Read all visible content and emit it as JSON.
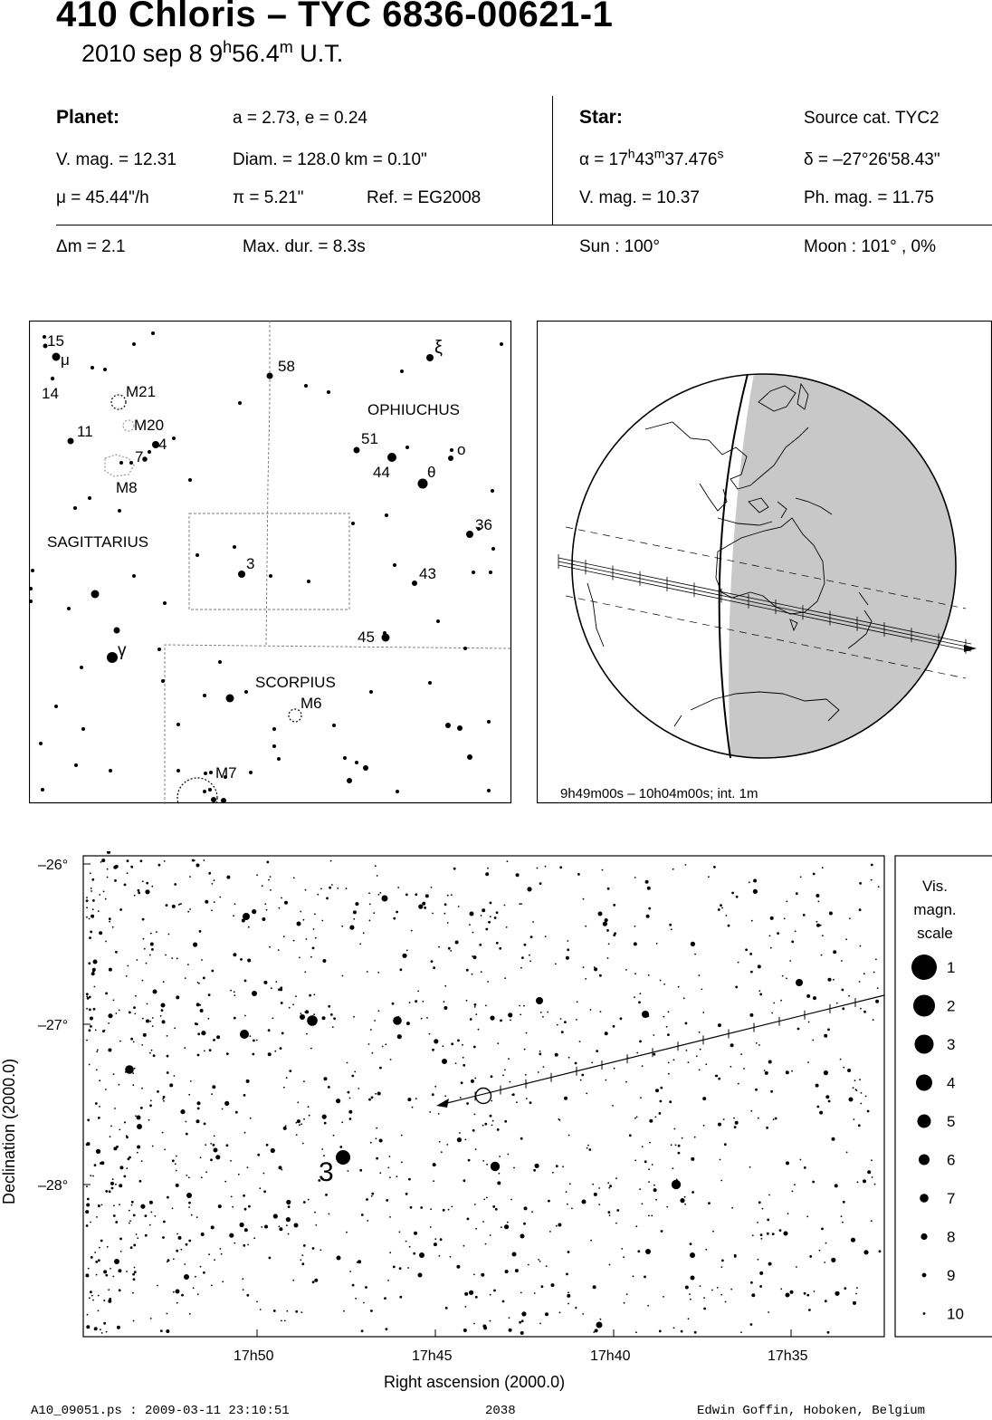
{
  "header": {
    "title": "410 Chloris  –  TYC 6836-00621-1",
    "date": "2010 sep  8   9",
    "time_h_sup": "h",
    "time_min": "56.4",
    "time_m_sup": "m",
    "time_tail": " U.T."
  },
  "planet": {
    "heading": "Planet:",
    "orbit": "a = 2.73, e = 0.24",
    "vmag": "V. mag. = 12.31",
    "diam": "Diam. = 128.0 km = 0.10\"",
    "mu": "μ =  45.44\"/h",
    "pi": "π =  5.21\"",
    "ref": "Ref. = EG2008"
  },
  "star": {
    "heading": "Star:",
    "source": "Source cat.  TYC2",
    "alpha_prefix": "α = 17",
    "alpha_h": "h",
    "alpha_min": "43",
    "alpha_m": "m",
    "alpha_sec": "37.476",
    "alpha_s": "s",
    "delta": "δ = –27°26'58.43\"",
    "vmag": "V. mag. = 10.37",
    "phmag": "Ph. mag. = 11.75"
  },
  "event": {
    "dm": "Δm = 2.1",
    "maxdur": "Max. dur. = 8.3s",
    "sun": "Sun : 100°",
    "moon": "Moon : 101° ,  0%"
  },
  "finder_chart": {
    "constellations": [
      "OPHIUCHUS",
      "SAGITTARIUS",
      "SCORPIUS"
    ],
    "labels": {
      "n15": "15",
      "mu": "μ",
      "n14": "14",
      "M21": "M21",
      "M20": "M20",
      "n11": "11",
      "n4": "4",
      "n7": "7",
      "M8": "M8",
      "n58": "58",
      "xi": "ξ",
      "n51": "51",
      "omicron": "o",
      "n44": "44",
      "theta": "θ",
      "n36": "36",
      "n3": "3",
      "n43": "43",
      "n45": "45",
      "gamma": "γ",
      "M6": "M6",
      "M7": "M7"
    }
  },
  "globe": {
    "caption": "9h49m00s – 10h04m00s; int.  1m"
  },
  "detail_chart": {
    "y_ticks": [
      "–26°",
      "–27°",
      "–28°"
    ],
    "x_ticks": [
      "17h50",
      "17h45",
      "17h40",
      "17h35"
    ],
    "xlabel": "Right ascension (2000.0)",
    "ylabel": "Declination (2000.0)",
    "star_label": "3"
  },
  "legend": {
    "title_lines": [
      "Vis.",
      "magn.",
      "scale"
    ],
    "mags": [
      "1",
      "2",
      "3",
      "4",
      "5",
      "6",
      "7",
      "8",
      "9",
      "10"
    ]
  },
  "footer": {
    "left": "A10_09051.ps : 2009-03-11 23:10:51",
    "center": "2038",
    "right": "Edwin Goffin, Hoboken, Belgium"
  }
}
